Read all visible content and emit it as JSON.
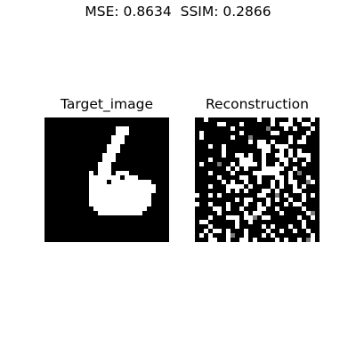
{
  "figure": {
    "suptitle": "MSE: 0.8634  SSIM: 0.2866"
  },
  "panels": [
    {
      "title": "Target_image"
    },
    {
      "title": "Reconstruction"
    }
  ],
  "images": {
    "grid_size": 28,
    "colormap": "gray",
    "target_digit_pixels": [
      "............................",
      "............................",
      "................###.........",
      "................###.........",
      "...............###..........",
      "...............###..........",
      "..............###...........",
      "..............###...........",
      ".............###............",
      ".............###............",
      "............###.............",
      "............###.............",
      "..........#.###.###.........",
      "..........#######.###.......",
      "..........####.#########....",
      "..........###############...",
      "..........###############...",
      "..........##############....",
      "..........##############....",
      "..........##############....",
      "...........############.....",
      "............##########......",
      "............................",
      "............................",
      "............................",
      "............................",
      "............................",
      "............................"
    ],
    "reconstruction_pixels": [
      "..#...........#..#...#.#..#.",
      ".....##...#......#.###..##..",
      "........#...........#.#...#.",
      ".#........#......##......#..",
      ".#......#............#..#...",
      "............#.##.#...#.##...",
      "...#..#.......###.###.......",
      "......#........##..#.#.#....",
      "......#..##.#..#..##.#.###..",
      "...#......###..#...##.#..#..",
      ".#......#.####.#..#.#...#...",
      ".......#.#.#...#####..#.....",
      "...#....#....######..#.#....",
      ".....#....##..#...##.#...#..",
      "......#.#..#..#..#.#.##...#.",
      "...#...####.#....#.#..#.#...",
      ".......#.#.#...##.#...##....",
      "#..#.#........##....#...#.#.",
      ".........#.##...#.#..#..#...",
      "#..#...#...#..#.#...#.##....",
      "....##.#..#...##..#.....#...",
      ".....#.....#.##....#.....#..",
      "...#...###.##..##......#..#.",
      ".##......#..#...........#...",
      "...#.....#.....#.#...#..#...",
      "..#.##.#...#....#..#..#..#..",
      ".#.#...#...#...#.#........#.",
      "...##..#..##.#....#.#..#..#."
    ],
    "reconstruction_gray_pixels": [
      [
        2,
        16
      ],
      [
        4,
        12
      ],
      [
        10,
        5
      ],
      [
        12,
        23
      ],
      [
        14,
        25
      ],
      [
        17,
        18
      ],
      [
        21,
        26
      ],
      [
        22,
        13
      ],
      [
        26,
        8
      ],
      [
        27,
        25
      ]
    ]
  }
}
